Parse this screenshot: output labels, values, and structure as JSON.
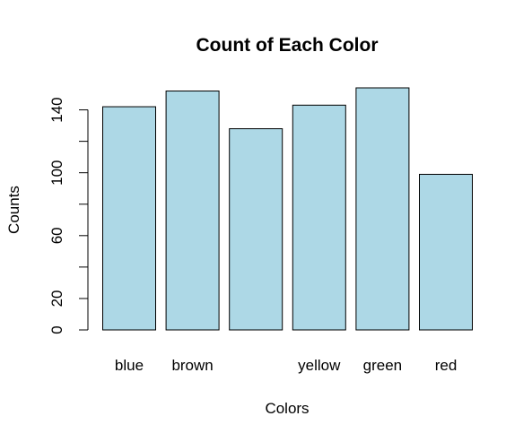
{
  "chart_data": {
    "type": "bar",
    "title": "Count of Each Color",
    "xlabel": "Colors",
    "ylabel": "Counts",
    "categories": [
      "blue",
      "brown",
      "",
      "yellow",
      "green",
      "red"
    ],
    "values": [
      142,
      152,
      128,
      143,
      154,
      99
    ],
    "ylim": [
      0,
      154
    ],
    "yticks": [
      0,
      20,
      40,
      60,
      80,
      100,
      120,
      140
    ],
    "ytick_labels": [
      "0",
      "20",
      "",
      "60",
      "",
      "100",
      "",
      "140"
    ],
    "bar_color": "#ADD8E6",
    "bar_border_color": "#000000",
    "grid": false,
    "legend": "none"
  }
}
